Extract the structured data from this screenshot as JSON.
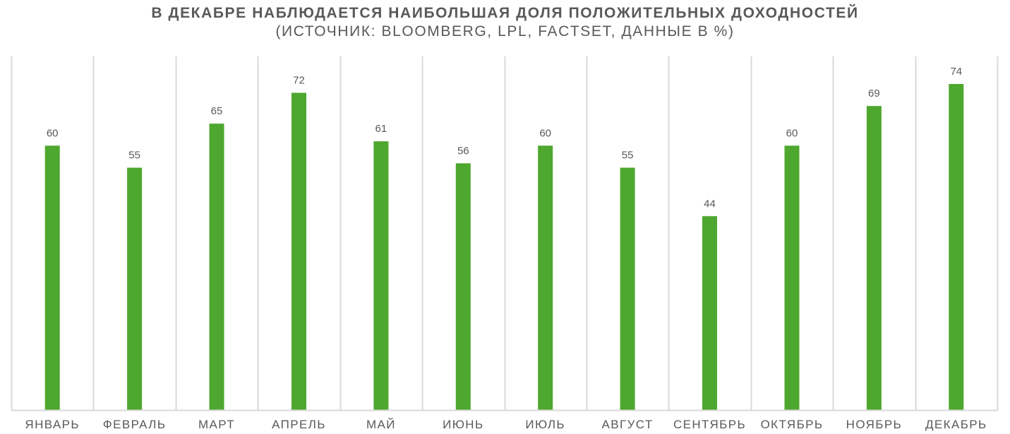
{
  "chart_data": {
    "type": "bar",
    "title": "В ДЕКАБРЕ НАБЛЮДАЕТСЯ НАИБОЛЬШАЯ ДОЛЯ ПОЛОЖИТЕЛЬНЫХ ДОХОДНОСТЕЙ",
    "subtitle": "(ИСТОЧНИК: BLOOMBERG, LPL, FACTSET, ДАННЫЕ В %)",
    "categories": [
      "ЯНВАРЬ",
      "ФЕВРАЛЬ",
      "МАРТ",
      "АПРЕЛЬ",
      "МАЙ",
      "ИЮНЬ",
      "ИЮЛЬ",
      "АВГУСТ",
      "СЕНТЯБРЬ",
      "ОКТЯБРЬ",
      "НОЯБРЬ",
      "ДЕКАБРЬ"
    ],
    "values": [
      60,
      55,
      65,
      72,
      61,
      56,
      60,
      55,
      44,
      60,
      69,
      74
    ],
    "ylim": [
      0,
      74
    ],
    "grid": "vertical",
    "legend": "none",
    "bar_color": "#4ea72e",
    "grid_color": "#d9d9d9",
    "text_color": "#595959"
  }
}
